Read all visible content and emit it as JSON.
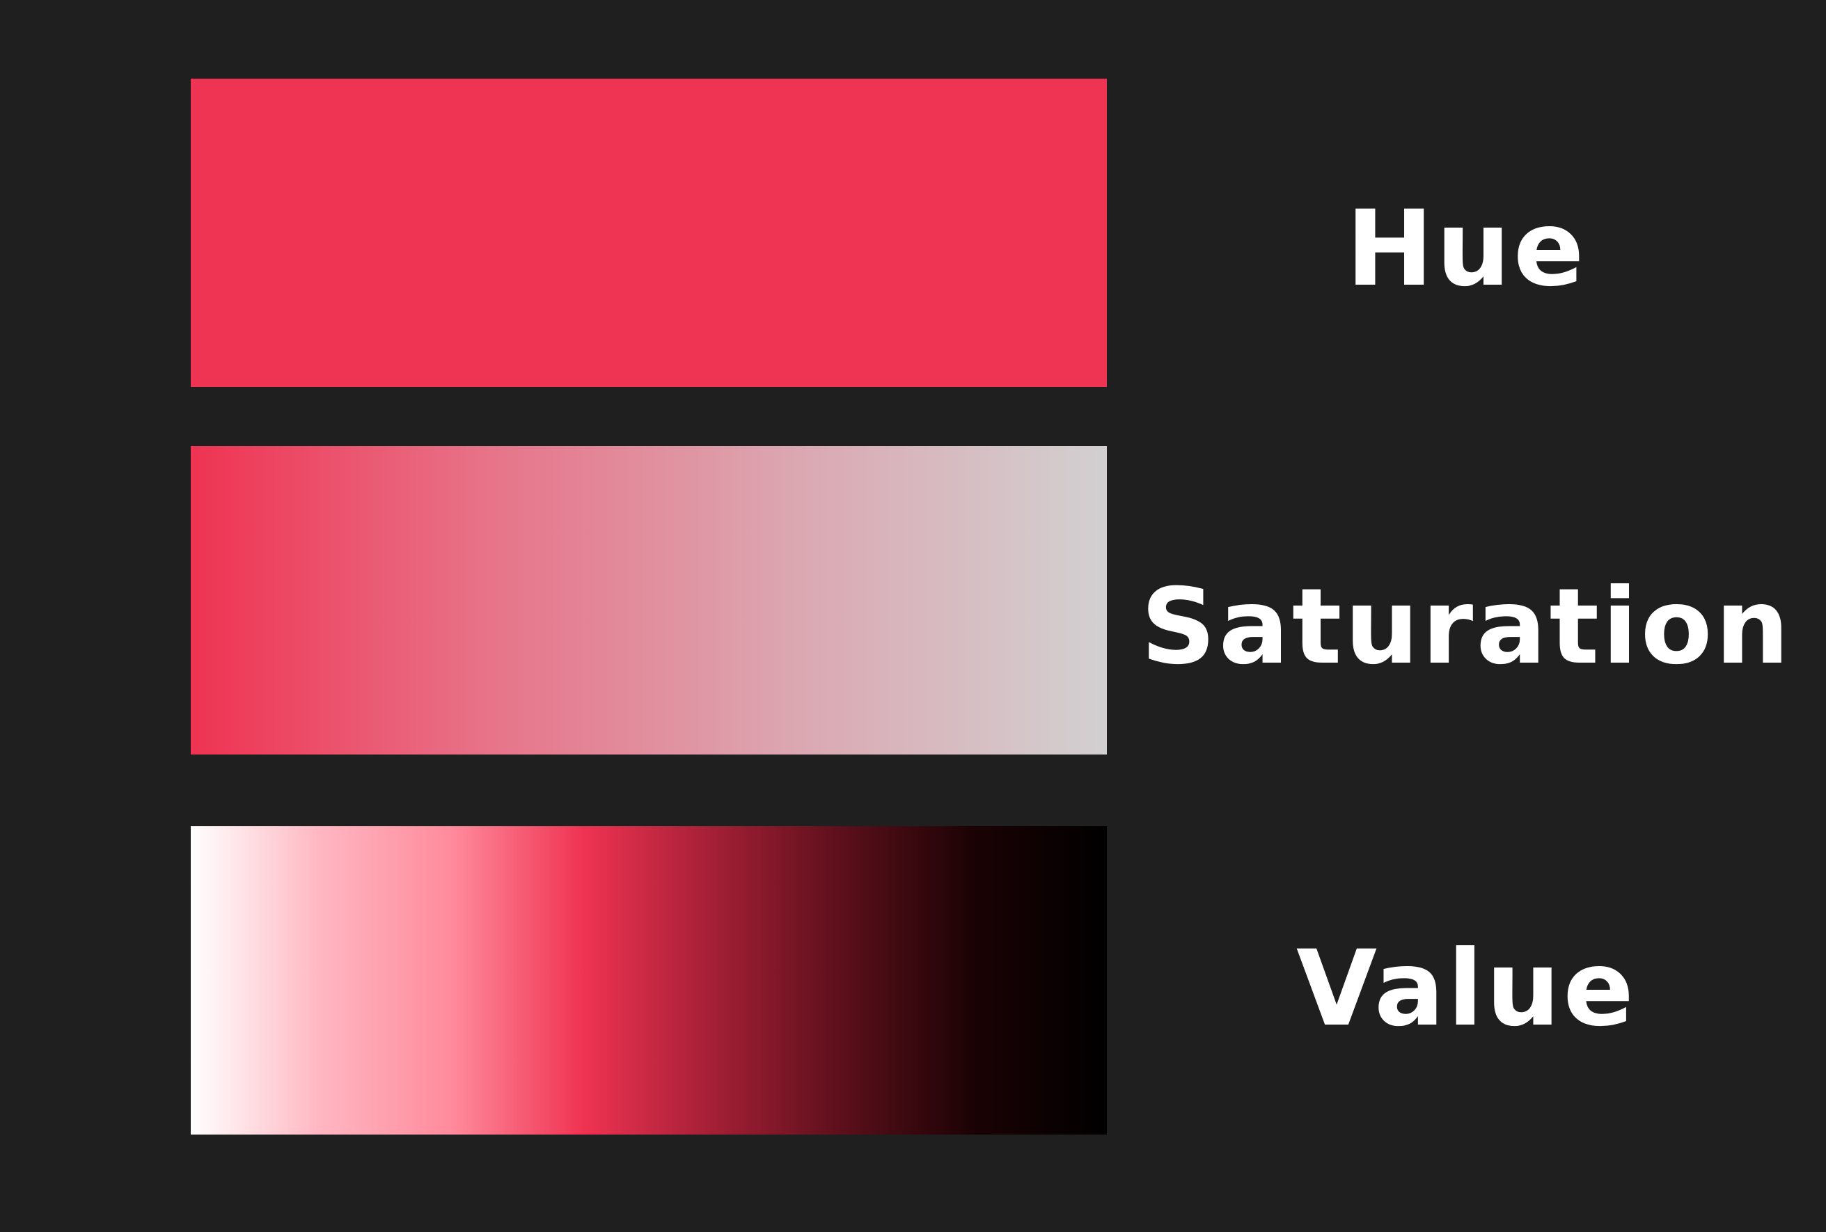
{
  "colors": {
    "background": "#1f1f1f",
    "base_hue": "#ef3352",
    "desaturated_gray": "#d2d0d1",
    "white": "#ffffff",
    "black": "#000000"
  },
  "rows": [
    {
      "label": "Hue",
      "fill": "solid",
      "stops": [
        "#ef3352",
        "#ef3352"
      ]
    },
    {
      "label": "Saturation",
      "fill": "gradient-left-to-right",
      "stops": [
        "#ef3352",
        "#e7758a",
        "#dba8b2",
        "#d2d0d1"
      ]
    },
    {
      "label": "Value",
      "fill": "gradient-left-to-right",
      "stops": [
        "#ffffff",
        "#ffb6c1",
        "#ff8a9b",
        "#ef3352",
        "#a31f35",
        "#5a0f1a",
        "#1a0204",
        "#000000"
      ]
    }
  ]
}
